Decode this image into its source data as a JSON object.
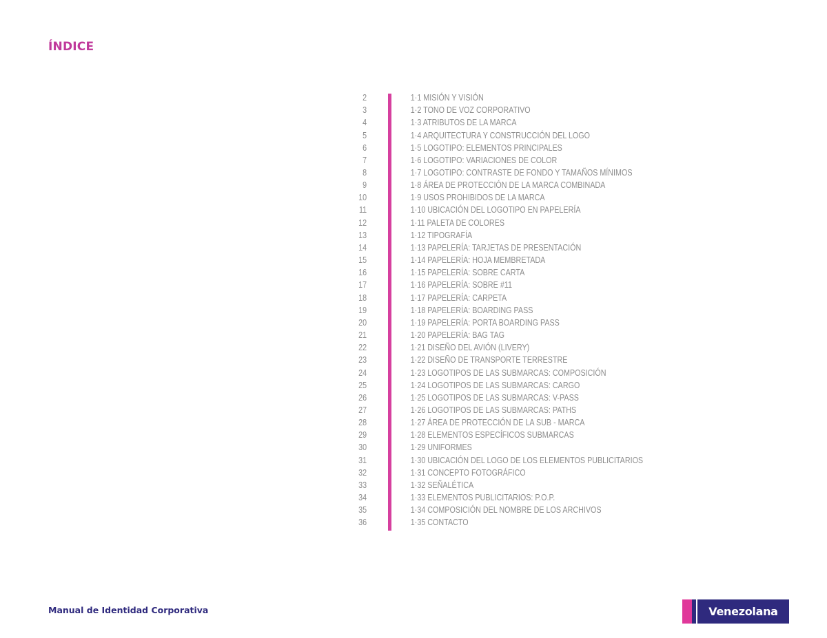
{
  "page": {
    "title": "ÍNDICE"
  },
  "toc": [
    {
      "page": "2",
      "label": "1·1  MISIÓN Y VISIÓN"
    },
    {
      "page": "3",
      "label": "1·2  TONO DE VOZ CORPORATIVO"
    },
    {
      "page": "4",
      "label": "1·3  ATRIBUTOS DE LA MARCA"
    },
    {
      "page": "5",
      "label": "1·4 ARQUITECTURA Y CONSTRUCCIÓN DEL LOGO"
    },
    {
      "page": "6",
      "label": "1·5 LOGOTIPO: ELEMENTOS PRINCIPALES"
    },
    {
      "page": "7",
      "label": "1·6 LOGOTIPO: VARIACIONES DE COLOR"
    },
    {
      "page": "8",
      "label": "1·7 LOGOTIPO: CONTRASTE DE FONDO Y TAMAÑOS MÍNIMOS"
    },
    {
      "page": "9",
      "label": "1·8  ÁREA DE PROTECCIÓN DE LA MARCA COMBINADA"
    },
    {
      "page": "10",
      "label": "1·9  USOS PROHIBIDOS DE LA MARCA"
    },
    {
      "page": "11",
      "label": "1·10  UBICACIÓN DEL LOGOTIPO EN PAPELERÍA"
    },
    {
      "page": "12",
      "label": "1·11 PALETA DE COLORES"
    },
    {
      "page": "13",
      "label": "1·12 TIPOGRAFÍA"
    },
    {
      "page": "14",
      "label": "1·13  PAPELERÍA: TARJETAS DE PRESENTACIÓN"
    },
    {
      "page": "15",
      "label": "1·14  PAPELERÍA: HOJA MEMBRETADA"
    },
    {
      "page": "16",
      "label": "1·15  PAPELERÍA: SOBRE CARTA"
    },
    {
      "page": "17",
      "label": "1·16  PAPELERÍA: SOBRE #11"
    },
    {
      "page": "18",
      "label": "1·17  PAPELERÍA: CARPETA"
    },
    {
      "page": "19",
      "label": "1·18  PAPELERÍA: BOARDING PASS"
    },
    {
      "page": "20",
      "label": "1·19  PAPELERÍA: PORTA BOARDING PASS"
    },
    {
      "page": "21",
      "label": "1·20  PAPELERÍA: BAG TAG"
    },
    {
      "page": "22",
      "label": "1·21  DISEÑO DEL AVIÓN (LIVERY)"
    },
    {
      "page": "23",
      "label": "1·22 DISEÑO DE TRANSPORTE TERRESTRE"
    },
    {
      "page": "24",
      "label": "1·23  LOGOTIPOS DE LAS SUBMARCAS: COMPOSICIÓN"
    },
    {
      "page": "25",
      "label": "1·24 LOGOTIPOS DE LAS SUBMARCAS: CARGO"
    },
    {
      "page": "26",
      "label": "1·25 LOGOTIPOS DE LAS SUBMARCAS: V-PASS"
    },
    {
      "page": "27",
      "label": "1·26  LOGOTIPOS DE LAS SUBMARCAS: PATHS"
    },
    {
      "page": "28",
      "label": "1·27  ÁREA DE PROTECCIÓN DE LA SUB - MARCA"
    },
    {
      "page": "29",
      "label": "1·28 ELEMENTOS ESPECÍFICOS SUBMARCAS"
    },
    {
      "page": "30",
      "label": "1·29 UNIFORMES"
    },
    {
      "page": "31",
      "label": "1·30  UBICACIÓN DEL LOGO DE LOS ELEMENTOS PUBLICITARIOS"
    },
    {
      "page": "32",
      "label": "1·31  CONCEPTO FOTOGRÁFICO"
    },
    {
      "page": "33",
      "label": "1·32  SEÑALÉTICA"
    },
    {
      "page": "34",
      "label": "1·33  ELEMENTOS PUBLICITARIOS: P.O.P."
    },
    {
      "page": "35",
      "label": "1·34 COMPOSICIÓN DEL NOMBRE DE LOS ARCHIVOS"
    },
    {
      "page": "36",
      "label": "1·35  CONTACTO"
    }
  ],
  "footer": {
    "text": "Manual de Identidad Corporativa"
  },
  "logo": {
    "text": "Venezolana"
  },
  "colors": {
    "accent": "#d6409f",
    "brand": "#2f2a7e",
    "toc_text": "#8d8d8d"
  }
}
